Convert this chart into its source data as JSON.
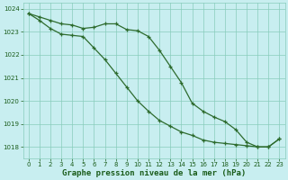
{
  "line1": {
    "x": [
      0,
      1,
      2,
      3,
      4,
      5,
      6,
      7,
      8,
      9,
      10,
      11,
      12,
      13,
      14,
      15,
      16,
      17,
      18,
      19,
      20,
      21,
      22,
      23
    ],
    "y": [
      1023.8,
      1023.65,
      1023.5,
      1023.35,
      1023.3,
      1023.15,
      1023.2,
      1023.35,
      1023.35,
      1023.1,
      1023.05,
      1022.8,
      1022.2,
      1021.5,
      1020.8,
      1019.9,
      1019.55,
      1019.3,
      1019.1,
      1018.75,
      1018.2,
      1018.0,
      1018.0,
      1018.35
    ],
    "color": "#2d6b2d",
    "lw": 0.9
  },
  "line2": {
    "x": [
      0,
      1,
      2,
      3,
      4,
      5,
      6,
      7,
      8,
      9,
      10,
      11,
      12,
      13,
      14,
      15,
      16,
      17,
      18,
      19,
      20,
      21,
      22,
      23
    ],
    "y": [
      1023.8,
      1023.5,
      1023.15,
      1022.9,
      1022.85,
      1022.8,
      1022.3,
      1021.8,
      1021.2,
      1020.6,
      1020.0,
      1019.55,
      1019.15,
      1018.9,
      1018.65,
      1018.5,
      1018.3,
      1018.2,
      1018.15,
      1018.1,
      1018.05,
      1018.0,
      1018.0,
      1018.35
    ],
    "color": "#2d6b2d",
    "lw": 0.9
  },
  "background_color": "#c8eef0",
  "plot_bg": "#c8eef0",
  "grid_color": "#88ccbb",
  "text_color": "#1a5c1a",
  "xlabel": "Graphe pression niveau de la mer (hPa)",
  "xlabel_fontsize": 6.5,
  "ylim": [
    1017.5,
    1024.25
  ],
  "xlim": [
    -0.5,
    23.5
  ],
  "yticks": [
    1018,
    1019,
    1020,
    1021,
    1022,
    1023,
    1024
  ],
  "xticks": [
    0,
    1,
    2,
    3,
    4,
    5,
    6,
    7,
    8,
    9,
    10,
    11,
    12,
    13,
    14,
    15,
    16,
    17,
    18,
    19,
    20,
    21,
    22,
    23
  ],
  "xtick_labels": [
    "0",
    "1",
    "2",
    "3",
    "4",
    "5",
    "6",
    "7",
    "8",
    "9",
    "10",
    "11",
    "12",
    "13",
    "14",
    "15",
    "16",
    "17",
    "18",
    "19",
    "20",
    "21",
    "22",
    "23"
  ],
  "marker": "+",
  "marker_size": 3.5,
  "marker_ew": 0.9,
  "tick_fontsize": 5.0,
  "fig_width": 3.2,
  "fig_height": 2.0,
  "dpi": 100
}
